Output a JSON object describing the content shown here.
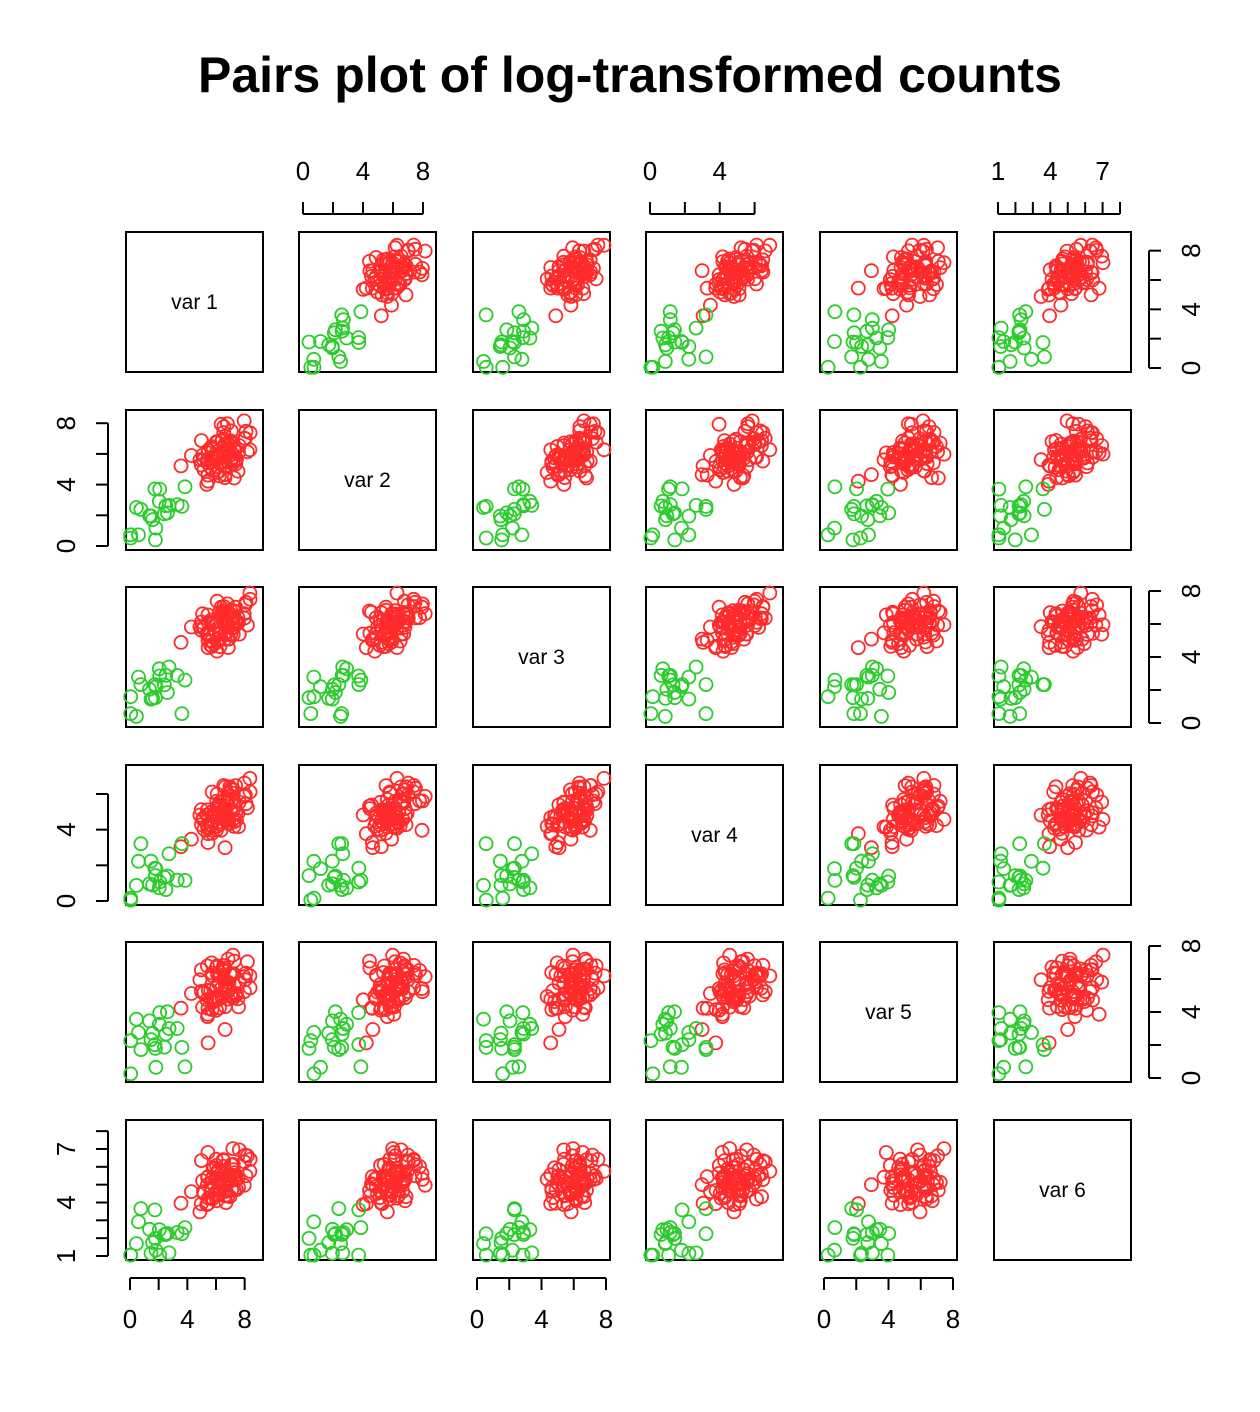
{
  "chart_data": {
    "type": "scatter",
    "title": "Pairs plot of log-transformed counts",
    "variables": [
      "var 1",
      "var 2",
      "var 3",
      "var 4",
      "var 5",
      "var 6"
    ],
    "ranges": [
      [
        0,
        9
      ],
      [
        0,
        8.6
      ],
      [
        0,
        8
      ],
      [
        0,
        7.4
      ],
      [
        0,
        8
      ],
      [
        1,
        8.4
      ]
    ],
    "tick_values": [
      [
        0,
        4,
        8
      ],
      [
        0,
        4,
        8
      ],
      [
        0,
        4,
        8
      ],
      [
        0,
        4
      ],
      [
        0,
        4,
        8
      ],
      [
        1,
        4,
        7
      ]
    ],
    "minor_ticks": [
      [
        0,
        2,
        4,
        6,
        8
      ],
      [
        0,
        2,
        4,
        6,
        8
      ],
      [
        0,
        2,
        4,
        6,
        8
      ],
      [
        0,
        2,
        4,
        6
      ],
      [
        0,
        2,
        4,
        6,
        8
      ],
      [
        1,
        2,
        3,
        4,
        5,
        6,
        7,
        8
      ]
    ],
    "colors": {
      "group_1": "#ff2b2b",
      "group_2": "#2ccc2c"
    },
    "legend": "none",
    "grid": false,
    "series": [
      {
        "color": "#ff2b2b",
        "x_var": "var 1",
        "y_var": "var 2",
        "x": [
          5.1,
          6.8,
          7.2,
          5.8,
          6.2,
          7.9,
          6.0,
          6.5,
          5.5,
          7.0,
          6.3,
          8.2,
          5.9,
          6.6,
          7.4,
          6.1,
          5.3,
          6.9,
          7.6,
          6.4
        ],
        "y": [
          6.2,
          5.8,
          7.1,
          4.9,
          6.6,
          5.3,
          7.8,
          6.0,
          5.1,
          6.9,
          4.4,
          6.3,
          5.7,
          7.3,
          6.1,
          5.0,
          6.8,
          4.7,
          5.9,
          6.4
        ]
      },
      {
        "color": "#2ccc2c",
        "x_var": "var 1",
        "y_var": "var 2",
        "x": [
          0.3,
          1.2,
          2.0,
          1.6,
          2.5,
          0.8,
          1.9,
          2.8,
          1.1,
          2.2,
          0.5,
          1.5
        ],
        "y": [
          2.3,
          1.4,
          3.0,
          0.5,
          2.6,
          3.5,
          1.8,
          2.1,
          0.2,
          3.3,
          1.0,
          2.7
        ]
      }
    ]
  }
}
